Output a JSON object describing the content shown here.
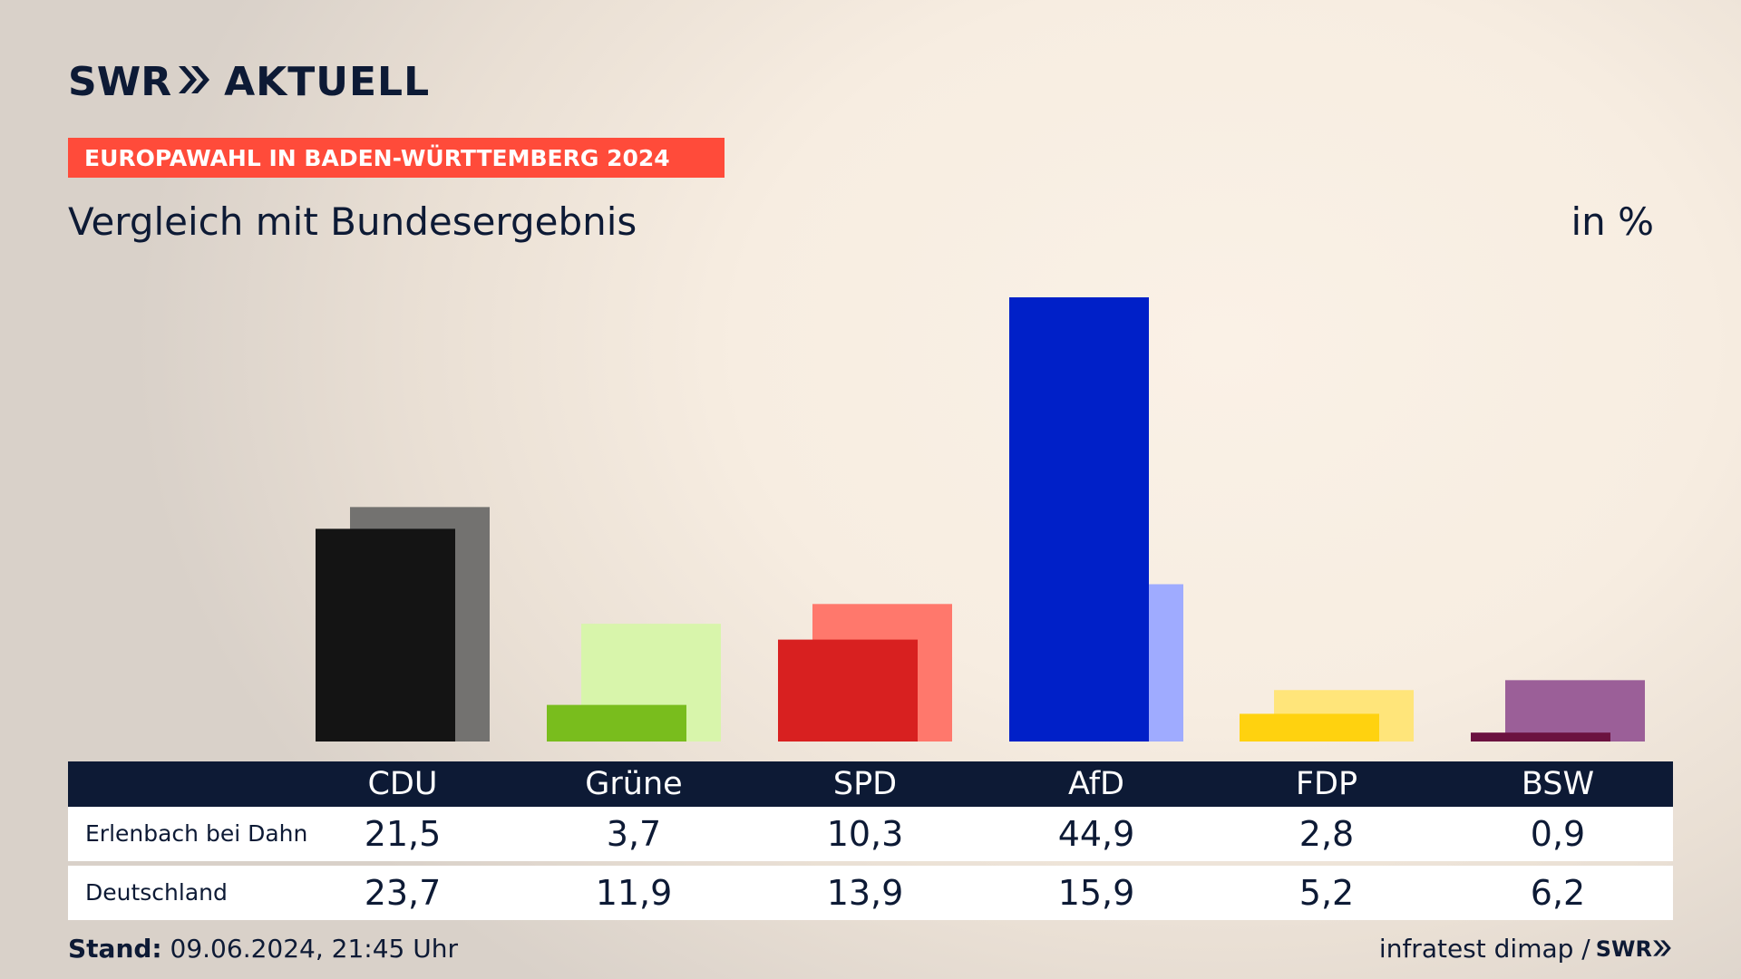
{
  "header": {
    "logo_text": "SWR",
    "logo_suffix": "AKTUELL",
    "banner": "EUROPAWAHL IN BADEN-WÜRTTEMBERG 2024",
    "subtitle": "Vergleich mit Bundesergebnis",
    "unit": "in %"
  },
  "table": {
    "rows": [
      {
        "label": "Erlenbach bei Dahn",
        "values": [
          "21,5",
          "3,7",
          "10,3",
          "44,9",
          "2,8",
          "0,9"
        ]
      },
      {
        "label": "Deutschland",
        "values": [
          "23,7",
          "11,9",
          "13,9",
          "15,9",
          "5,2",
          "6,2"
        ]
      }
    ]
  },
  "footer": {
    "stand_label": "Stand:",
    "stand_value": "09.06.2024, 21:45 Uhr",
    "source": "infratest dimap /",
    "source_brand": "SWR"
  },
  "chart_data": {
    "type": "bar",
    "categories": [
      "CDU",
      "Grüne",
      "SPD",
      "AfD",
      "FDP",
      "BSW"
    ],
    "series": [
      {
        "name": "Erlenbach bei Dahn",
        "values": [
          21.5,
          3.7,
          10.3,
          44.9,
          2.8,
          0.9
        ],
        "colors": [
          "#141414",
          "#79bd1d",
          "#d82020",
          "#0020c8",
          "#ffd20f",
          "#6b1240"
        ]
      },
      {
        "name": "Deutschland",
        "values": [
          23.7,
          11.9,
          13.9,
          15.9,
          5.2,
          6.2
        ],
        "colors": [
          "#737270",
          "#d8f5ab",
          "#ff786c",
          "#9fabff",
          "#ffe57a",
          "#9b5f98"
        ]
      }
    ],
    "ylim": [
      0,
      45
    ],
    "grid": false,
    "legend": "table below chart"
  }
}
